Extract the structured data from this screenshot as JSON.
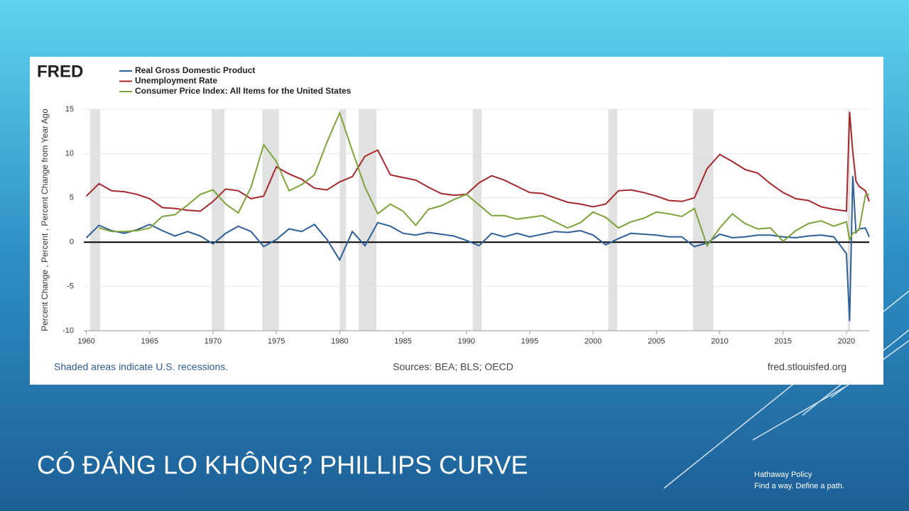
{
  "slide": {
    "title": "CÓ ĐÁNG LO KHÔNG? PHILLIPS CURVE",
    "brand": "Hathaway Policy",
    "tagline": "Find a way. Define a path."
  },
  "chart_data": {
    "type": "line",
    "logo": "FRED",
    "y_label": "Percent Change , Percent , Percent Change from Year Ago",
    "note": "Shaded areas indicate U.S. recessions.",
    "sources": "Sources: BEA; BLS; OECD",
    "site": "fred.stlouisfed.org",
    "xlim": [
      1959.8,
      2021.8
    ],
    "ylim": [
      -10,
      15
    ],
    "xticks": [
      1960,
      1965,
      1970,
      1975,
      1980,
      1985,
      1990,
      1995,
      2000,
      2005,
      2010,
      2015,
      2020
    ],
    "yticks": [
      -10,
      -5,
      0,
      5,
      10,
      15
    ],
    "grid": true,
    "recessions": [
      [
        1960.3,
        1961.1
      ],
      [
        1969.9,
        1970.9
      ],
      [
        1973.9,
        1975.2
      ],
      [
        1980.0,
        1980.5
      ],
      [
        1981.5,
        1982.9
      ],
      [
        1990.5,
        1991.2
      ],
      [
        2001.2,
        2001.9
      ],
      [
        2007.9,
        2009.5
      ],
      [
        2020.1,
        2020.3
      ]
    ],
    "x": [
      1960,
      1961,
      1962,
      1963,
      1964,
      1965,
      1966,
      1967,
      1968,
      1969,
      1970,
      1971,
      1972,
      1973,
      1974,
      1975,
      1976,
      1977,
      1978,
      1979,
      1980,
      1981,
      1982,
      1983,
      1984,
      1985,
      1986,
      1987,
      1988,
      1989,
      1990,
      1991,
      1992,
      1993,
      1994,
      1995,
      1996,
      1997,
      1998,
      1999,
      2000,
      2001,
      2002,
      2003,
      2004,
      2005,
      2006,
      2007,
      2008,
      2009,
      2010,
      2011,
      2012,
      2013,
      2014,
      2015,
      2016,
      2017,
      2018,
      2019,
      2020.0,
      2020.25,
      2020.5,
      2020.75,
      2021.0,
      2021.5,
      2021.8
    ],
    "series": [
      {
        "name": "Real Gross Domestic Product",
        "color": "#2f5f98",
        "values": [
          0.5,
          1.9,
          1.3,
          1.0,
          1.4,
          2.0,
          1.3,
          0.7,
          1.2,
          0.7,
          -0.2,
          1.0,
          1.8,
          1.2,
          -0.5,
          0.3,
          1.5,
          1.2,
          2.0,
          0.3,
          -2.0,
          1.2,
          -0.4,
          2.2,
          1.8,
          1.0,
          0.8,
          1.1,
          0.9,
          0.7,
          0.2,
          -0.4,
          1.0,
          0.6,
          1.0,
          0.6,
          0.9,
          1.2,
          1.1,
          1.3,
          0.8,
          -0.3,
          0.4,
          1.0,
          0.9,
          0.8,
          0.6,
          0.6,
          -0.5,
          -0.1,
          0.9,
          0.5,
          0.6,
          0.8,
          0.8,
          0.6,
          0.5,
          0.7,
          0.8,
          0.6,
          -1.3,
          -8.9,
          7.5,
          1.1,
          1.5,
          1.6,
          0.6
        ]
      },
      {
        "name": "Unemployment Rate",
        "color": "#a5282d",
        "values": [
          5.2,
          6.6,
          5.8,
          5.7,
          5.4,
          4.9,
          3.9,
          3.8,
          3.6,
          3.5,
          4.6,
          6.0,
          5.8,
          4.9,
          5.2,
          8.5,
          7.7,
          7.1,
          6.1,
          5.9,
          6.8,
          7.4,
          9.7,
          10.4,
          7.6,
          7.3,
          7.0,
          6.2,
          5.5,
          5.3,
          5.4,
          6.7,
          7.5,
          7.0,
          6.3,
          5.6,
          5.5,
          5.0,
          4.5,
          4.3,
          4.0,
          4.3,
          5.8,
          5.9,
          5.6,
          5.2,
          4.7,
          4.6,
          5.0,
          8.3,
          9.9,
          9.1,
          8.2,
          7.8,
          6.6,
          5.6,
          4.9,
          4.7,
          4.0,
          3.7,
          3.5,
          14.7,
          10.2,
          6.9,
          6.3,
          5.8,
          4.6
        ]
      },
      {
        "name": "Consumer Price Index: All Items for the United States",
        "color": "#7fa33a",
        "values": [
          null,
          1.6,
          1.2,
          1.2,
          1.3,
          1.6,
          2.9,
          3.1,
          4.2,
          5.4,
          5.9,
          4.3,
          3.3,
          6.2,
          11.0,
          9.1,
          5.8,
          6.5,
          7.6,
          11.3,
          14.6,
          10.3,
          6.2,
          3.2,
          4.3,
          3.5,
          1.9,
          3.7,
          4.1,
          4.8,
          5.4,
          4.2,
          3.0,
          3.0,
          2.6,
          2.8,
          3.0,
          2.3,
          1.6,
          2.2,
          3.4,
          2.8,
          1.6,
          2.3,
          2.7,
          3.4,
          3.2,
          2.9,
          3.8,
          -0.4,
          1.6,
          3.2,
          2.1,
          1.5,
          1.6,
          0.1,
          1.3,
          2.1,
          2.4,
          1.8,
          2.3,
          0.3,
          1.0,
          1.2,
          1.4,
          5.3,
          5.4
        ]
      }
    ]
  }
}
